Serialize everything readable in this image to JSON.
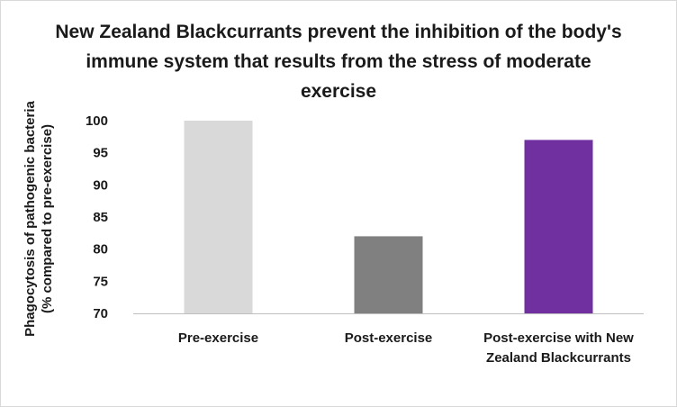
{
  "chart_data": {
    "type": "bar",
    "title": "New Zealand Blackcurrants prevent the inhibition of the body's immune system that results from the stress of moderate exercise",
    "ylabel_line1": "Phagocytosis of pathogenic bacteria",
    "ylabel_line2": "(% compared to pre-exercise)",
    "xlabel": "",
    "categories": [
      "Pre-exercise",
      "Post-exercise",
      "Post-exercise with New Zealand Blackcurrants"
    ],
    "values": [
      100,
      82,
      97
    ],
    "colors": [
      "#d9d9d9",
      "#808080",
      "#7030a0"
    ],
    "ylim": [
      70,
      100
    ],
    "yticks": [
      "70",
      "75",
      "80",
      "85",
      "90",
      "95",
      "100"
    ],
    "grid": false,
    "legend": "none"
  }
}
